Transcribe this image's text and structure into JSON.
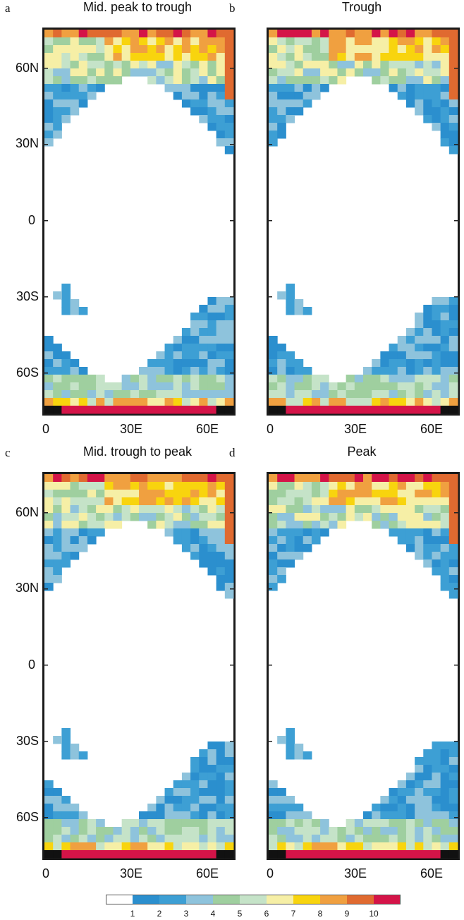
{
  "panels": [
    {
      "letter": "a",
      "title": "Mid. peak to trough"
    },
    {
      "letter": "b",
      "title": "Trough"
    },
    {
      "letter": "c",
      "title": "Mid. trough to peak"
    },
    {
      "letter": "d",
      "title": "Peak"
    }
  ],
  "axes": {
    "lat_labels": [
      "60N",
      "30N",
      "0",
      "30S",
      "60S"
    ],
    "lon_labels": [
      "0",
      "30E",
      "60E"
    ]
  },
  "colorbar": {
    "labels": [
      "1",
      "2",
      "3",
      "4",
      "5",
      "6",
      "7",
      "8",
      "9",
      "10"
    ],
    "colors": [
      "#ffffff",
      "#2b8fce",
      "#3d9fd4",
      "#8ec3dc",
      "#9fcf9f",
      "#c5e3c8",
      "#f6efa6",
      "#f8d40e",
      "#f0a040",
      "#e06a30",
      "#d41448"
    ]
  },
  "chart_data": {
    "type": "heatmap",
    "x_range": [
      "0",
      "60E"
    ],
    "y_range": [
      "60S",
      "60N"
    ],
    "colorbar_levels": [
      1,
      2,
      3,
      4,
      5,
      6,
      7,
      8,
      9,
      10
    ]
  }
}
